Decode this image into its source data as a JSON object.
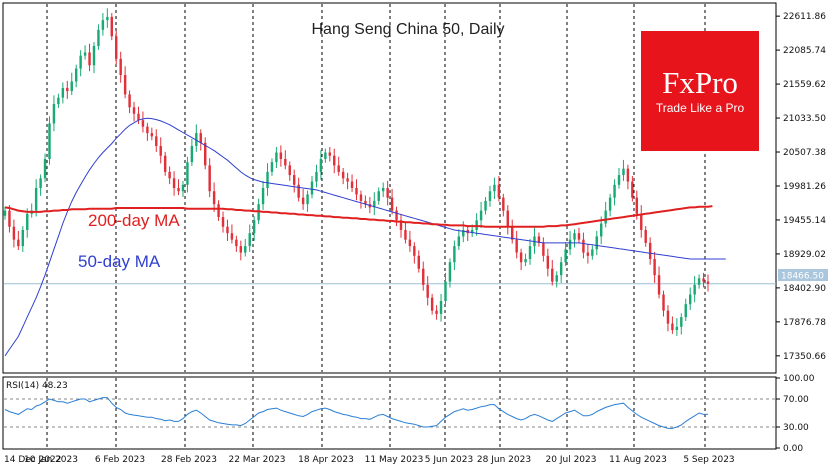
{
  "chart_data": [
    {
      "type": "candlestick",
      "title": "Hang Seng China 50, Daily",
      "last_price": "18466.50",
      "y_ticks": [
        "22611.86",
        "22085.74",
        "21559.62",
        "21033.50",
        "20507.38",
        "19981.26",
        "19455.14",
        "18929.02",
        "18402.90",
        "17876.78",
        "17350.66"
      ],
      "ylim": [
        17100,
        22800
      ],
      "x_ticks": [
        "14 Dec 2022",
        "10 Jan 2023",
        "6 Feb 2023",
        "28 Feb 2023",
        "22 Mar 2023",
        "18 Apr 2023",
        "11 May 2023",
        "5 Jun 2023",
        "28 Jun 2023",
        "20 Jul 2023",
        "11 Aug 2023",
        "5 Sep 2023"
      ],
      "grid": "vertical-dashed",
      "colors": {
        "up": "#19a974",
        "down": "#e0303a",
        "ma200": "#e02020",
        "ma50": "#2f3fd0",
        "last_price_line": "#9bbfd6"
      },
      "annotations": [
        {
          "text": "200-day MA",
          "color": "#e02020"
        },
        {
          "text": "50-day MA",
          "color": "#2f3fd0"
        }
      ],
      "closes": [
        19600,
        19350,
        19150,
        19050,
        19300,
        19550,
        19600,
        19950,
        20100,
        20400,
        20950,
        21250,
        21350,
        21500,
        21450,
        21600,
        21800,
        22000,
        22050,
        21850,
        22150,
        22400,
        22550,
        22600,
        22300,
        21950,
        21700,
        21400,
        21200,
        21100,
        21000,
        20900,
        20800,
        20750,
        20600,
        20450,
        20200,
        20100,
        19950,
        19900,
        20000,
        20350,
        20600,
        20800,
        20650,
        20300,
        19900,
        19700,
        19500,
        19350,
        19250,
        19150,
        19050,
        18950,
        19050,
        19250,
        19450,
        19700,
        19950,
        20200,
        20350,
        20500,
        20400,
        20300,
        20150,
        20000,
        19800,
        19700,
        19850,
        20050,
        20200,
        20400,
        20500,
        20450,
        20300,
        20200,
        20100,
        20050,
        19950,
        19850,
        19750,
        19700,
        19650,
        19750,
        19900,
        19950,
        19800,
        19600,
        19450,
        19300,
        19150,
        19050,
        18900,
        18700,
        18450,
        18250,
        18050,
        18000,
        18200,
        18500,
        18800,
        19050,
        19200,
        19300,
        19250,
        19300,
        19450,
        19600,
        19750,
        19900,
        20000,
        19800,
        19600,
        19350,
        19150,
        18950,
        18800,
        18850,
        19050,
        19200,
        19100,
        18900,
        18700,
        18500,
        18600,
        18800,
        19000,
        19150,
        19250,
        19150,
        18950,
        18900,
        19000,
        19200,
        19400,
        19600,
        19800,
        20000,
        20150,
        20250,
        20050,
        19800,
        19550,
        19300,
        19100,
        18850,
        18600,
        18300,
        18050,
        17850,
        17750,
        17800,
        17950,
        18150,
        18300,
        18450,
        18550,
        18500,
        18466
      ],
      "ma50": [
        17350,
        17450,
        17550,
        17650,
        17800,
        17950,
        18100,
        18250,
        18420,
        18600,
        18800,
        19000,
        19200,
        19400,
        19580,
        19740,
        19880,
        20000,
        20120,
        20230,
        20330,
        20420,
        20500,
        20570,
        20640,
        20720,
        20790,
        20860,
        20920,
        20960,
        21000,
        21020,
        21030,
        21025,
        21010,
        20990,
        20960,
        20930,
        20890,
        20850,
        20810,
        20770,
        20730,
        20690,
        20650,
        20610,
        20570,
        20530,
        20480,
        20430,
        20380,
        20320,
        20260,
        20200,
        20150,
        20110,
        20080,
        20060,
        20040,
        20030,
        20020,
        20010,
        20000,
        19990,
        19980,
        19970,
        19960,
        19950,
        19940,
        19930,
        19920,
        19900,
        19880,
        19860,
        19840,
        19820,
        19800,
        19780,
        19760,
        19740,
        19720,
        19700,
        19680,
        19660,
        19640,
        19620,
        19600,
        19580,
        19560,
        19540,
        19520,
        19500,
        19480,
        19460,
        19440,
        19420,
        19400,
        19380,
        19360,
        19340,
        19320,
        19300,
        19290,
        19280,
        19270,
        19260,
        19250,
        19240,
        19230,
        19220,
        19210,
        19200,
        19190,
        19180,
        19170,
        19160,
        19150,
        19140,
        19130,
        19120,
        19110,
        19100,
        19100,
        19100,
        19100,
        19100,
        19100,
        19100,
        19100,
        19100,
        19090,
        19080,
        19070,
        19060,
        19050,
        19040,
        19030,
        19020,
        19010,
        19000,
        18990,
        18980,
        18970,
        18960,
        18950,
        18940,
        18930,
        18920,
        18910,
        18900,
        18890,
        18880,
        18870,
        18860,
        18850,
        18850,
        18850,
        18850,
        18850,
        18850,
        18850,
        18850,
        18850
      ],
      "ma200": [
        19650,
        19640,
        19620,
        19600,
        19590,
        19580,
        19580,
        19580,
        19580,
        19590,
        19590,
        19600,
        19600,
        19610,
        19610,
        19620,
        19620,
        19620,
        19620,
        19630,
        19630,
        19630,
        19630,
        19630,
        19630,
        19640,
        19640,
        19640,
        19640,
        19640,
        19640,
        19640,
        19640,
        19640,
        19640,
        19640,
        19640,
        19640,
        19640,
        19640,
        19640,
        19630,
        19630,
        19630,
        19630,
        19630,
        19630,
        19630,
        19630,
        19630,
        19620,
        19620,
        19610,
        19610,
        19600,
        19600,
        19590,
        19590,
        19580,
        19580,
        19570,
        19570,
        19560,
        19560,
        19550,
        19550,
        19540,
        19540,
        19530,
        19530,
        19520,
        19520,
        19510,
        19510,
        19500,
        19500,
        19490,
        19490,
        19480,
        19480,
        19470,
        19470,
        19460,
        19460,
        19450,
        19450,
        19440,
        19440,
        19430,
        19430,
        19420,
        19420,
        19410,
        19410,
        19400,
        19400,
        19390,
        19390,
        19380,
        19380,
        19370,
        19370,
        19370,
        19370,
        19360,
        19360,
        19360,
        19360,
        19350,
        19350,
        19350,
        19350,
        19350,
        19350,
        19350,
        19350,
        19350,
        19350,
        19350,
        19350,
        19350,
        19350,
        19360,
        19360,
        19360,
        19370,
        19370,
        19380,
        19390,
        19400,
        19410,
        19420,
        19430,
        19440,
        19450,
        19460,
        19470,
        19480,
        19490,
        19500,
        19510,
        19520,
        19530,
        19540,
        19550,
        19560,
        19570,
        19580,
        19590,
        19600,
        19610,
        19620,
        19630,
        19640,
        19650,
        19650,
        19660,
        19660,
        19660,
        19670
      ]
    },
    {
      "type": "line",
      "title": "RSI(14) 48.23",
      "y_ticks": [
        "100.00",
        "70.00",
        "30.00",
        "0.00"
      ],
      "ylim": [
        0,
        100
      ],
      "levels": [
        70,
        30
      ],
      "color": "#2b7fd6",
      "values": [
        55,
        52,
        50,
        48,
        52,
        56,
        55,
        60,
        62,
        66,
        70,
        68,
        66,
        66,
        64,
        66,
        68,
        70,
        70,
        66,
        68,
        70,
        72,
        72,
        64,
        58,
        55,
        50,
        48,
        47,
        46,
        45,
        44,
        44,
        42,
        41,
        39,
        40,
        38,
        38,
        42,
        48,
        52,
        54,
        50,
        45,
        40,
        38,
        36,
        35,
        34,
        33,
        33,
        32,
        35,
        40,
        45,
        50,
        52,
        55,
        56,
        57,
        54,
        52,
        50,
        48,
        46,
        45,
        48,
        52,
        54,
        56,
        57,
        55,
        52,
        50,
        48,
        47,
        45,
        44,
        42,
        42,
        41,
        44,
        47,
        48,
        45,
        42,
        40,
        38,
        36,
        35,
        34,
        32,
        30,
        30,
        31,
        32,
        38,
        44,
        48,
        52,
        54,
        56,
        54,
        55,
        57,
        59,
        60,
        62,
        62,
        56,
        52,
        48,
        45,
        42,
        40,
        42,
        46,
        48,
        46,
        43,
        40,
        38,
        42,
        46,
        50,
        52,
        54,
        50,
        46,
        46,
        48,
        52,
        55,
        58,
        60,
        62,
        63,
        64,
        58,
        53,
        48,
        44,
        41,
        38,
        35,
        32,
        30,
        28,
        28,
        30,
        33,
        38,
        42,
        46,
        50,
        48,
        48.23
      ]
    }
  ],
  "logo": {
    "brand": "FxPro",
    "tagline": "Trade Like a Pro",
    "color": "#e8141c"
  }
}
